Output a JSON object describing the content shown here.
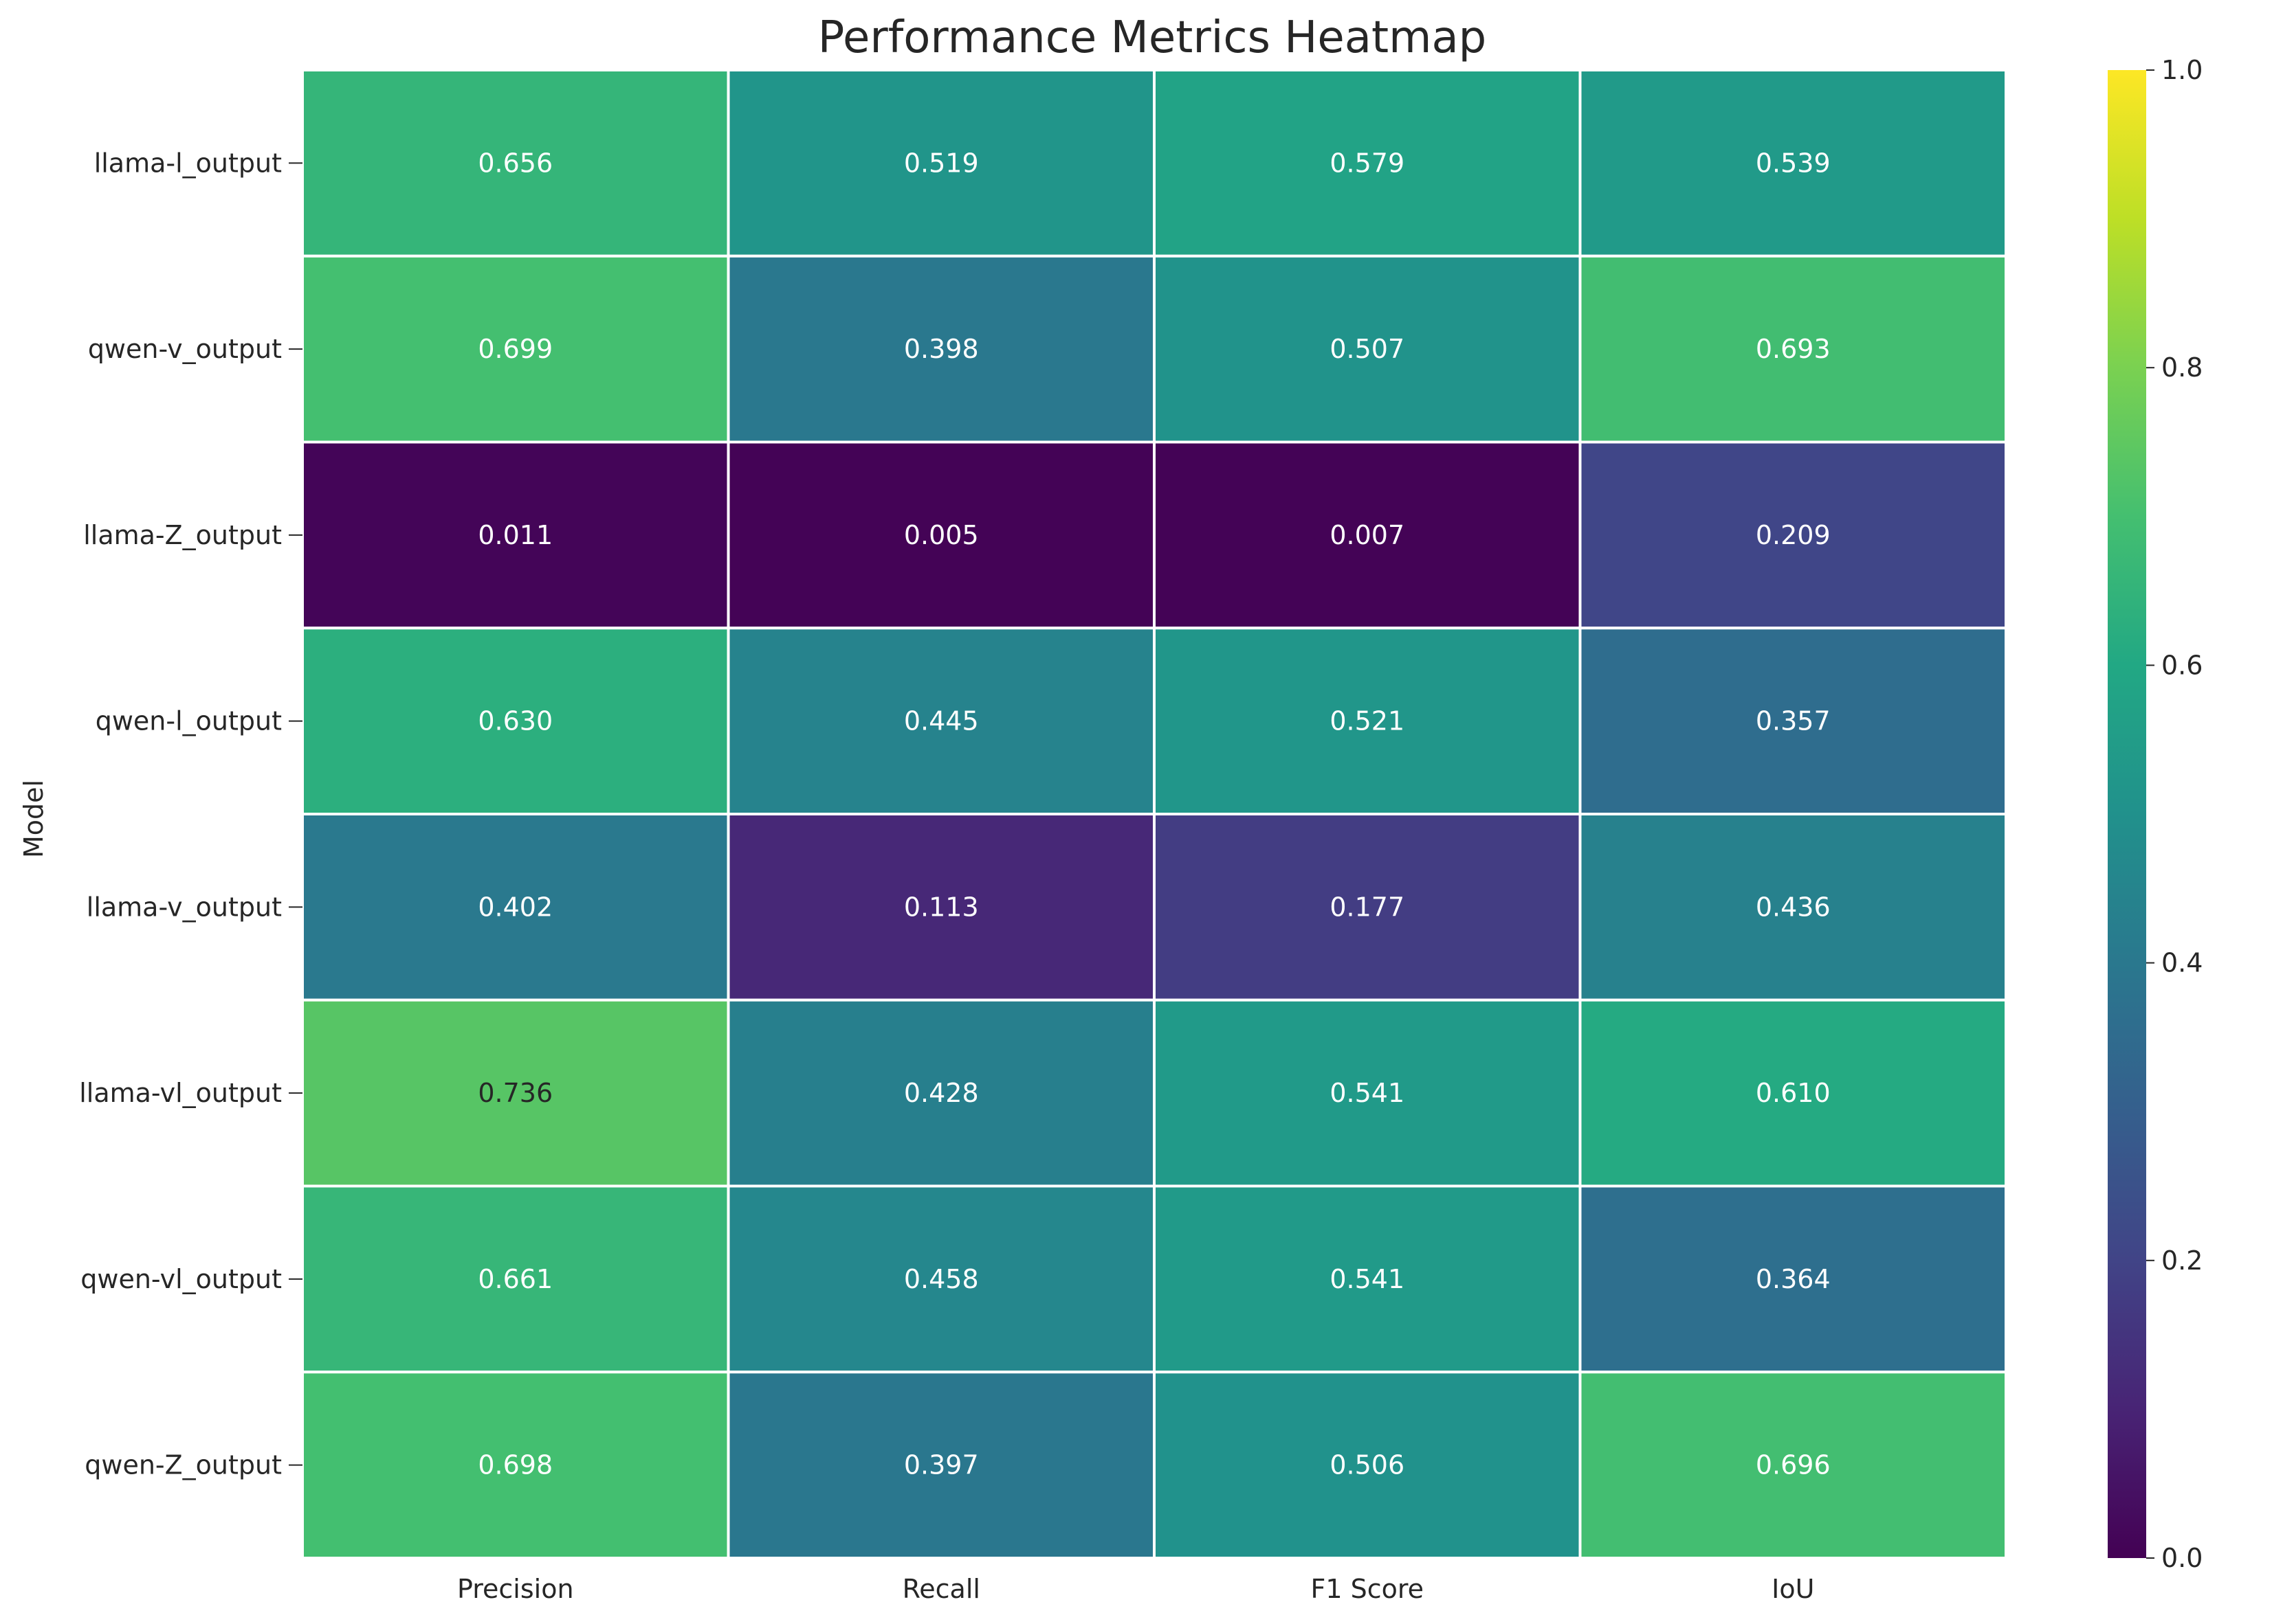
{
  "chart_data": {
    "type": "heatmap",
    "title": "Performance Metrics Heatmap",
    "xlabel": "",
    "ylabel": "Model",
    "columns": [
      "Precision",
      "Recall",
      "F1 Score",
      "IoU"
    ],
    "rows": [
      "llama-l_output",
      "qwen-v_output",
      "llama-Z_output",
      "qwen-l_output",
      "llama-v_output",
      "llama-vl_output",
      "qwen-vl_output",
      "qwen-Z_output"
    ],
    "values": [
      [
        0.656,
        0.519,
        0.579,
        0.539
      ],
      [
        0.699,
        0.398,
        0.507,
        0.693
      ],
      [
        0.011,
        0.005,
        0.007,
        0.209
      ],
      [
        0.63,
        0.445,
        0.521,
        0.357
      ],
      [
        0.402,
        0.113,
        0.177,
        0.436
      ],
      [
        0.736,
        0.428,
        0.541,
        0.61
      ],
      [
        0.661,
        0.458,
        0.541,
        0.364
      ],
      [
        0.698,
        0.397,
        0.506,
        0.696
      ]
    ],
    "value_labels": [
      [
        "0.656",
        "0.519",
        "0.579",
        "0.539"
      ],
      [
        "0.699",
        "0.398",
        "0.507",
        "0.693"
      ],
      [
        "0.011",
        "0.005",
        "0.007",
        "0.209"
      ],
      [
        "0.630",
        "0.445",
        "0.521",
        "0.357"
      ],
      [
        "0.402",
        "0.113",
        "0.177",
        "0.436"
      ],
      [
        "0.736",
        "0.428",
        "0.541",
        "0.610"
      ],
      [
        "0.661",
        "0.458",
        "0.541",
        "0.364"
      ],
      [
        "0.698",
        "0.397",
        "0.506",
        "0.696"
      ]
    ],
    "colormap": "viridis",
    "colorbar": {
      "range": [
        0.0,
        1.0
      ],
      "ticks": [
        0.0,
        0.2,
        0.4,
        0.6,
        0.8,
        1.0
      ],
      "tick_labels": [
        "0.0",
        "0.2",
        "0.4",
        "0.6",
        "0.8",
        "1.0"
      ],
      "placement": "right"
    },
    "grid": false,
    "cell_separator_color": "#ffffff",
    "text_colors": {
      "dark_cell": "#ffffff",
      "light_cell": "#262626"
    }
  }
}
